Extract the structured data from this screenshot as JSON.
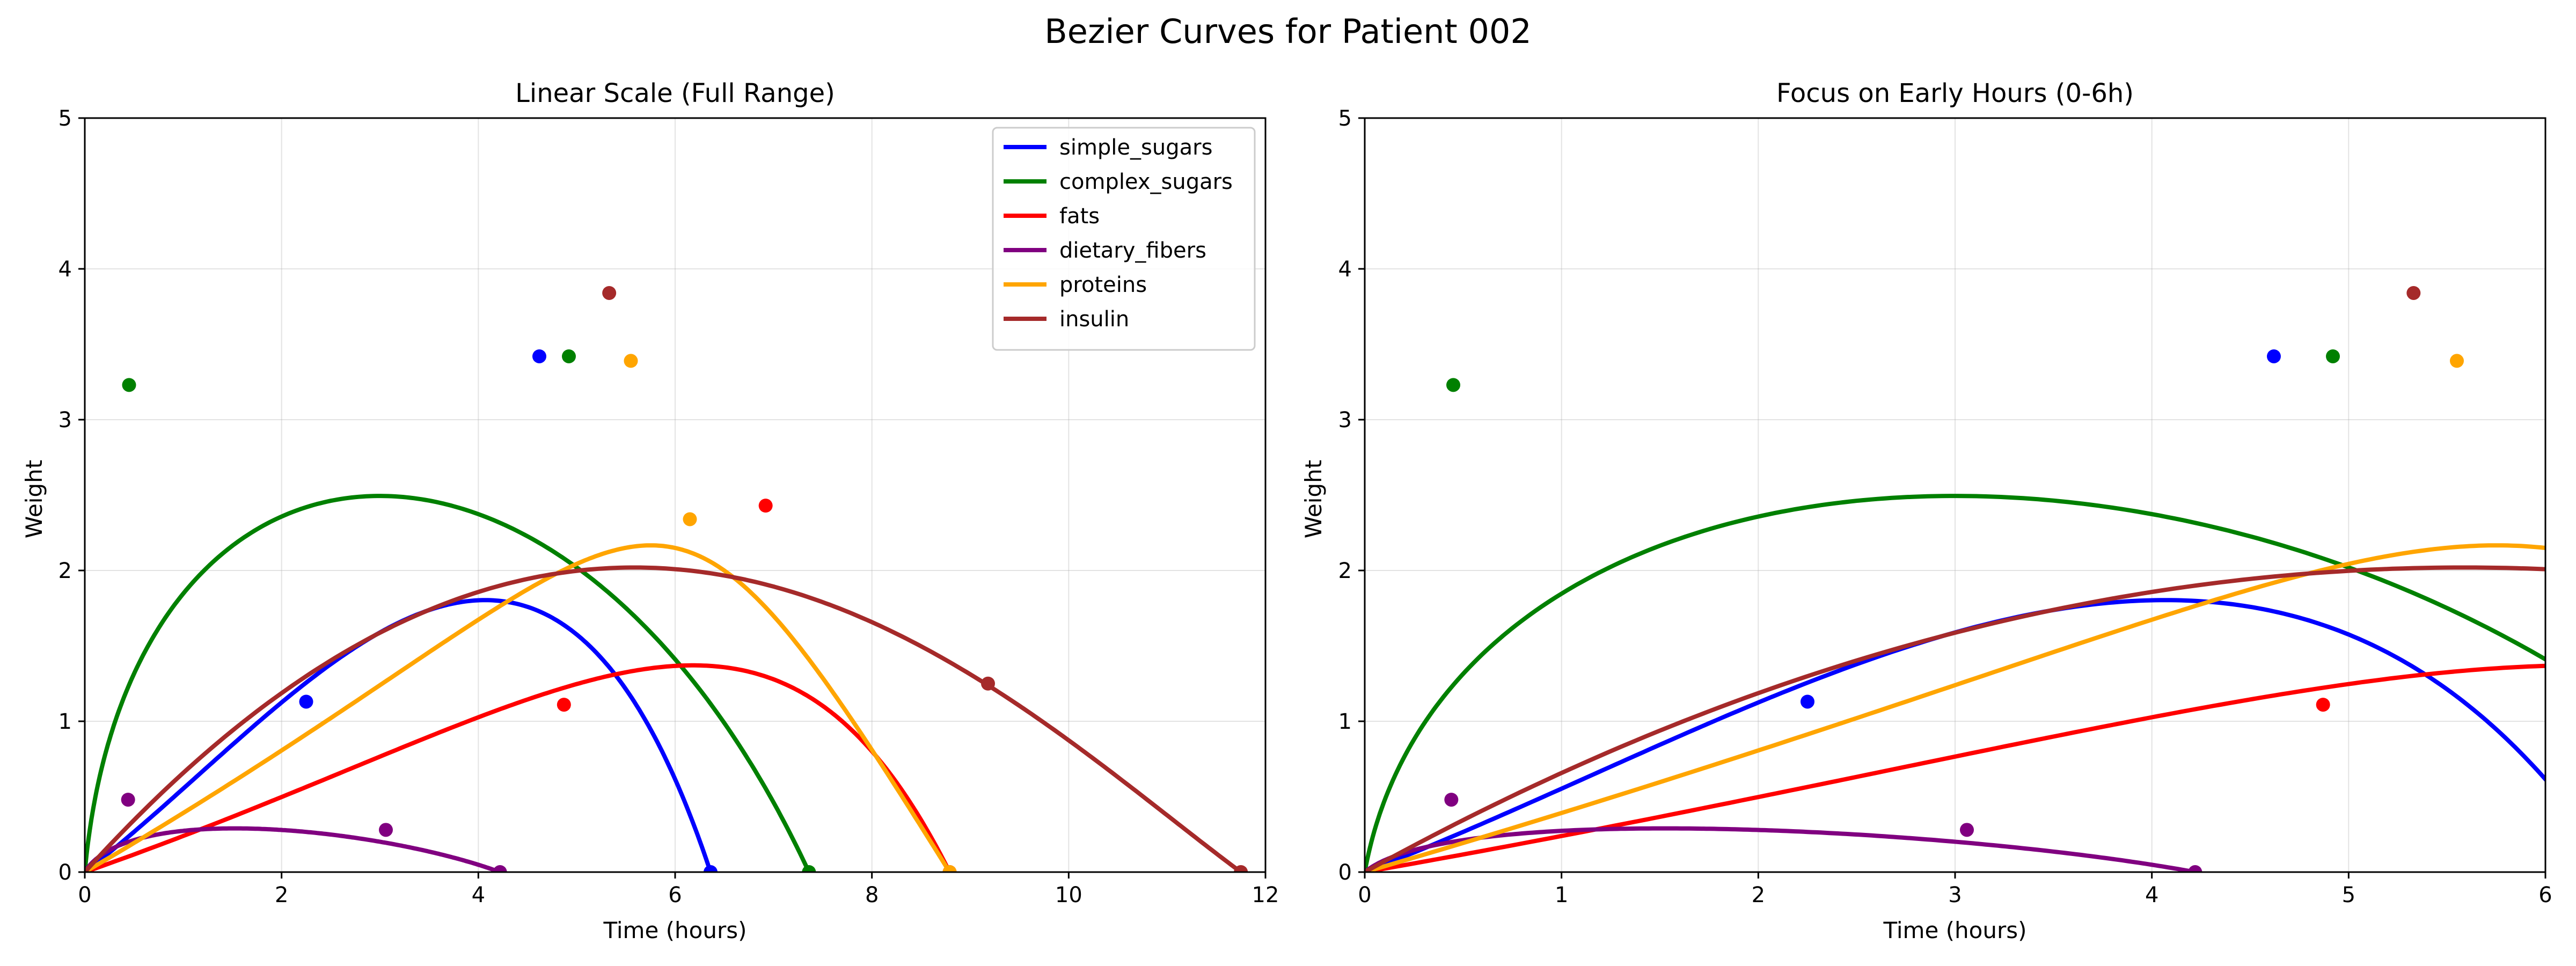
{
  "figure": {
    "suptitle": "Bezier Curves for Patient 002"
  },
  "chart_data": [
    {
      "type": "line",
      "title": "Linear Scale (Full Range)",
      "xlabel": "Time (hours)",
      "ylabel": "Weight",
      "xlim": [
        0,
        12
      ],
      "ylim": [
        0,
        5
      ],
      "xticks": [
        0,
        2,
        4,
        6,
        8,
        10,
        12
      ],
      "yticks": [
        0,
        1,
        2,
        3,
        4,
        5
      ],
      "grid": true,
      "legend": "top-right",
      "series": [
        {
          "name": "simple_sugars",
          "color": "#0000ff",
          "control_points": [
            [
              0,
              0
            ],
            [
              2.25,
              1.13
            ],
            [
              4.62,
              3.42
            ],
            [
              6.36,
              0
            ]
          ]
        },
        {
          "name": "complex_sugars",
          "color": "#008000",
          "control_points": [
            [
              0,
              0
            ],
            [
              0.45,
              3.23
            ],
            [
              4.92,
              3.42
            ],
            [
              7.36,
              0
            ]
          ]
        },
        {
          "name": "fats",
          "color": "#ff0000",
          "control_points": [
            [
              0,
              0
            ],
            [
              4.87,
              1.11
            ],
            [
              6.92,
              2.43
            ],
            [
              8.79,
              0
            ]
          ]
        },
        {
          "name": "dietary_fibers",
          "color": "#800080",
          "control_points": [
            [
              0,
              0
            ],
            [
              0.44,
              0.48
            ],
            [
              3.06,
              0.28
            ],
            [
              4.22,
              0
            ]
          ]
        },
        {
          "name": "proteins",
          "color": "#ffa500",
          "control_points": [
            [
              0,
              0
            ],
            [
              6.15,
              2.34
            ],
            [
              5.55,
              3.39
            ],
            [
              8.79,
              0
            ]
          ]
        },
        {
          "name": "insulin",
          "color": "#a52a2a",
          "control_points": [
            [
              0,
              0
            ],
            [
              5.33,
              3.84
            ],
            [
              9.18,
              1.25
            ],
            [
              11.75,
              0
            ]
          ]
        }
      ]
    },
    {
      "type": "line",
      "title": "Focus on Early Hours (0-6h)",
      "xlabel": "Time (hours)",
      "ylabel": "Weight",
      "xlim": [
        0,
        6
      ],
      "ylim": [
        0,
        5
      ],
      "xticks": [
        0,
        1,
        2,
        3,
        4,
        5,
        6
      ],
      "yticks": [
        0,
        1,
        2,
        3,
        4,
        5
      ],
      "grid": true,
      "legend": "none"
    }
  ]
}
